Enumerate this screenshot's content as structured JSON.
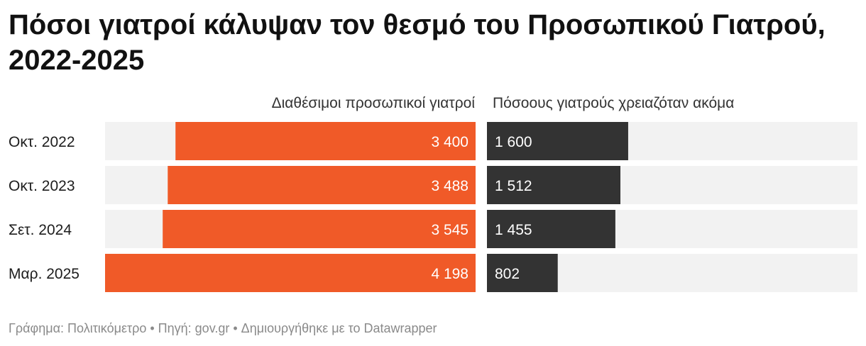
{
  "title": "Πόσοι γιατροί κάλυψαν τον θεσμό του Προσωπικού Γιατρού, 2022-2025",
  "chart_data": {
    "type": "bar",
    "categories": [
      "Οκτ. 2022",
      "Οκτ. 2023",
      "Σετ. 2024",
      "Μαρ. 2025"
    ],
    "series": [
      {
        "name": "Διαθέσιμοι προσωπικοί γιατροί",
        "values": [
          3400,
          3488,
          3545,
          4198
        ],
        "labels": [
          "3 400",
          "3 488",
          "3 545",
          "4 198"
        ],
        "color": "#f05a28"
      },
      {
        "name": "Πόσοους γιατρούς χρειαζόταν ακόμα",
        "values": [
          1600,
          1512,
          1455,
          802
        ],
        "labels": [
          "1 600",
          "1 512",
          "1 455",
          "802"
        ],
        "color": "#333333"
      }
    ],
    "xlim": [
      0,
      4198
    ],
    "background_color": "#f2f2f2",
    "grid": false,
    "legend": "column headers above bars"
  },
  "footer": {
    "source": "Γράφημα: Πολιτικόμετρο • Πηγή: gov.gr • Δημιουργήθηκε με το Datawrapper"
  }
}
